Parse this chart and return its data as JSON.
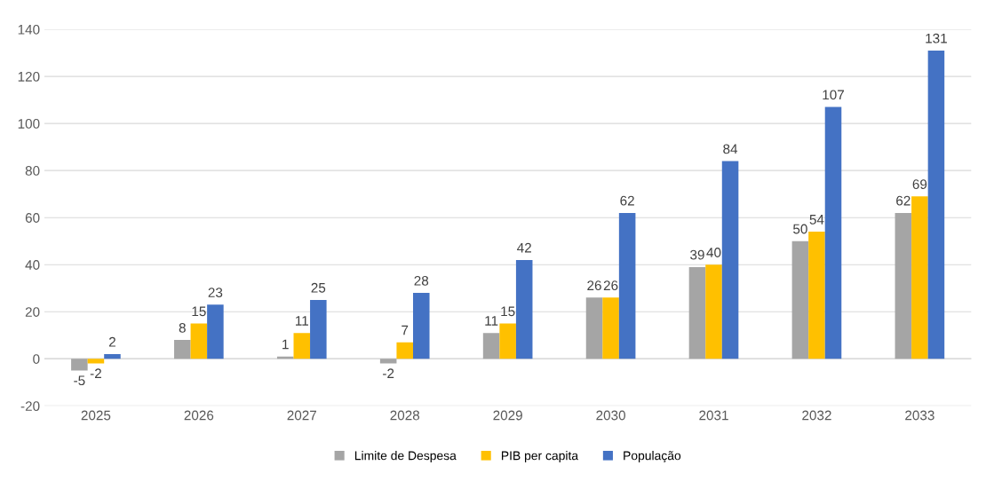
{
  "chart_data": {
    "type": "bar",
    "categories": [
      "2025",
      "2026",
      "2027",
      "2028",
      "2029",
      "2030",
      "2031",
      "2032",
      "2033"
    ],
    "series": [
      {
        "name": "Limite de Despesa",
        "color": "#a5a5a5",
        "values": [
          -5,
          8,
          1,
          -2,
          11,
          26,
          39,
          50,
          62
        ]
      },
      {
        "name": "PIB per capita",
        "color": "#ffc000",
        "values": [
          -2,
          15,
          11,
          7,
          15,
          26,
          40,
          54,
          69
        ]
      },
      {
        "name": "População",
        "color": "#4472c4",
        "values": [
          2,
          23,
          25,
          28,
          42,
          62,
          84,
          107,
          131
        ]
      }
    ],
    "ylim": [
      -20,
      140
    ],
    "yticks": [
      -20,
      0,
      20,
      40,
      60,
      80,
      100,
      120,
      140
    ],
    "grid": "y",
    "legend": "bottom",
    "data_labels": true
  }
}
